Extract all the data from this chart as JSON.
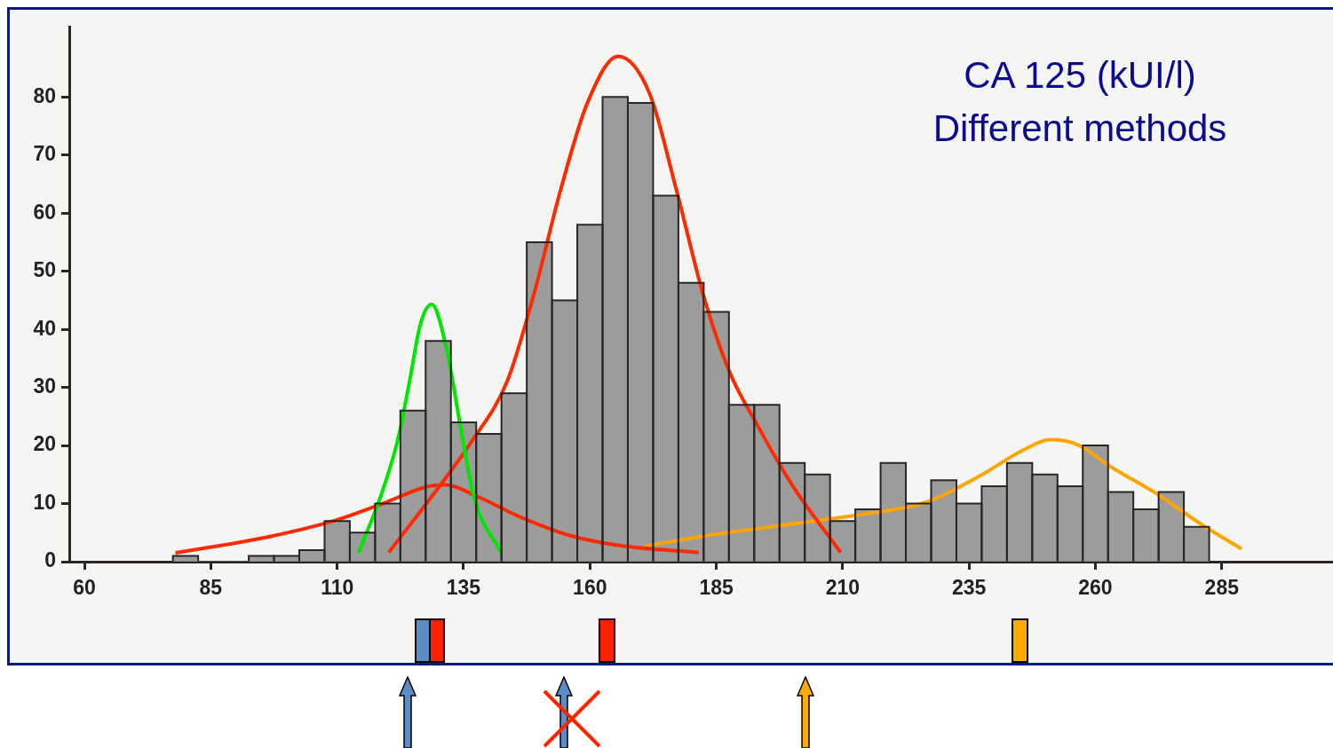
{
  "chart_data": {
    "type": "histogram",
    "title": "CA 125  (kUI/l)",
    "subtitle": "Different methods",
    "bins": [
      77.5,
      82.5,
      87.5,
      92.5,
      97.5,
      102.5,
      107.5,
      112.5,
      117.5,
      122.5,
      127.5,
      132.5,
      137.5,
      142.5,
      147.5,
      152.5,
      157.5,
      162.5,
      167.5,
      172.5,
      177.5,
      182.5,
      187.5,
      192.5,
      197.5,
      202.5,
      207.5,
      212.5,
      217.5,
      222.5,
      227.5,
      232.5,
      237.5,
      242.5,
      247.5,
      252.5,
      257.5,
      262.5,
      267.5,
      272.5,
      277.5,
      282.5
    ],
    "values": [
      1,
      0,
      0,
      1,
      1,
      2,
      7,
      5,
      10,
      26,
      38,
      24,
      22,
      29,
      55,
      45,
      58,
      80,
      79,
      63,
      48,
      43,
      27,
      27,
      17,
      15,
      7,
      9,
      17,
      10,
      14,
      10,
      13,
      17,
      15,
      13,
      20,
      12,
      9,
      12,
      6
    ],
    "color": "#9c9c9c",
    "series": [
      {
        "type": "line",
        "color": "#00e600",
        "x": [
          114.2,
          118.5,
          122,
          124.3,
          126.5,
          128.7,
          131.8,
          134.3,
          137.1,
          142.4
        ],
        "values": [
          1.5,
          11,
          21,
          31,
          41,
          44.3,
          36,
          23.7,
          11,
          1.6
        ]
      },
      {
        "type": "line",
        "color": "#ff2a00",
        "x": [
          78,
          96,
          110,
          119,
          127.8,
          131.3,
          138.3,
          145.4,
          156,
          166.5,
          181.5
        ],
        "values": [
          1.5,
          4.2,
          7.2,
          10,
          12.9,
          13.2,
          11,
          8,
          4.5,
          2.7,
          1.6
        ]
      },
      {
        "type": "line",
        "color": "#ff2a00",
        "x": [
          120.2,
          127.8,
          136.6,
          143.6,
          148.9,
          154.2,
          159.5,
          165.6,
          171.8,
          177.1,
          182.4,
          187.6,
          193,
          200,
          209.6
        ],
        "values": [
          1.6,
          10.2,
          20.7,
          31,
          46,
          64,
          79,
          87,
          80.6,
          64,
          46,
          32.7,
          23.7,
          13.2,
          1.6
        ]
      },
      {
        "type": "line",
        "color": "#ffa500",
        "x": [
          170.9,
          184,
          201.7,
          215.8,
          226.4,
          237,
          245.7,
          251,
          256.3,
          263.3,
          272.1,
          281,
          288.9
        ],
        "values": [
          2.7,
          4.6,
          6.7,
          8.4,
          10.2,
          14.7,
          19.2,
          21,
          20.2,
          16.2,
          11.7,
          6.4,
          2.2
        ]
      }
    ],
    "xlim": [
      57,
      307
    ],
    "xticks": [
      60,
      85,
      110,
      135,
      160,
      185,
      210,
      235,
      260,
      285
    ],
    "ylim": [
      0,
      92
    ],
    "yticks": [
      0,
      10,
      20,
      30,
      40,
      50,
      60,
      70,
      80
    ],
    "grid": false,
    "legend": false,
    "marker": "none"
  }
}
